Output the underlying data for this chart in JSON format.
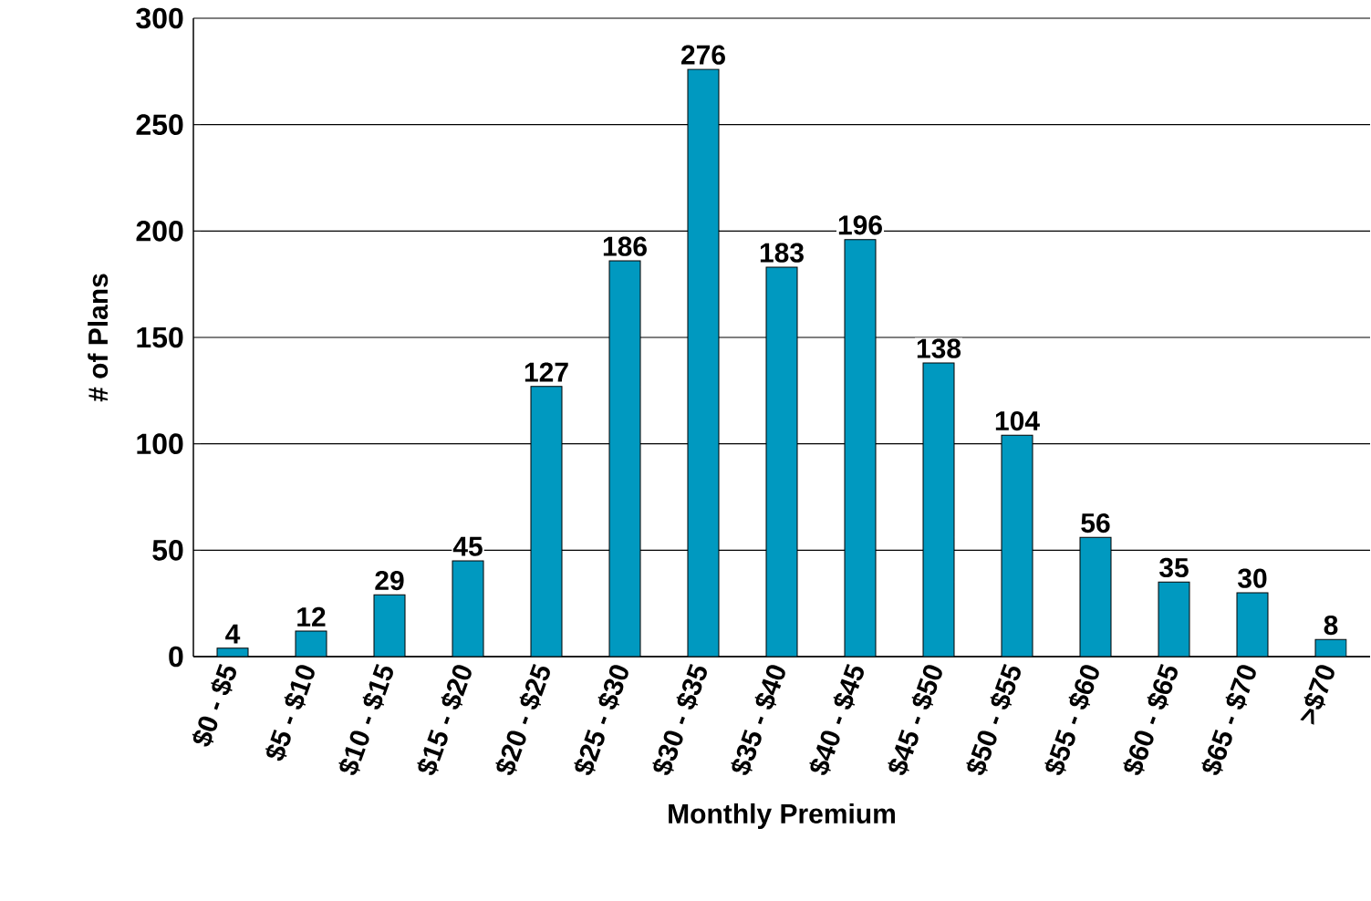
{
  "chart_data": {
    "type": "bar",
    "xlabel": "Monthly Premium",
    "ylabel": "# of Plans",
    "categories": [
      "$0 - $5",
      "$5 - $10",
      "$10 - $15",
      "$15 - $20",
      "$20 - $25",
      "$25 - $30",
      "$30 - $35",
      "$35 - $40",
      "$40 - $45",
      "$45 - $50",
      "$50 - $55",
      "$55 - $60",
      "$60 - $65",
      "$65 - $70",
      ">$70"
    ],
    "values": [
      4,
      12,
      29,
      45,
      127,
      186,
      276,
      183,
      196,
      138,
      104,
      56,
      35,
      30,
      8
    ],
    "color": "#0099c0",
    "ylim": [
      0,
      300
    ],
    "yticks": [
      0,
      50,
      100,
      150,
      200,
      250,
      300
    ],
    "grid": "y",
    "data_labels": true
  }
}
